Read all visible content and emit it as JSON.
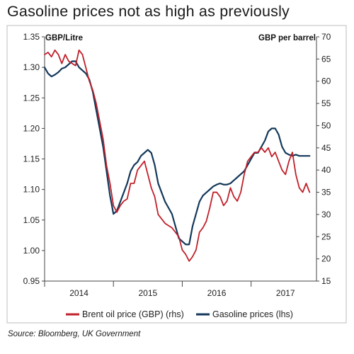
{
  "title": "Gasoline prices not as high as previously",
  "source": "Source: Bloomberg, UK Government",
  "colors": {
    "brent": "#c0202a",
    "gasoline": "#13385a",
    "frame": "#bcbcbc",
    "axis": "#444444"
  },
  "chart_data": {
    "type": "line",
    "title": "Gasoline prices not as high as previously",
    "left_axis": {
      "label": "GBP/Litre",
      "range": [
        0.95,
        1.35
      ],
      "ticks": [
        0.95,
        1.0,
        1.05,
        1.1,
        1.15,
        1.2,
        1.25,
        1.3,
        1.35
      ],
      "tick_labels": [
        "0.95",
        "1.00",
        "1.05",
        "1.10",
        "1.15",
        "1.20",
        "1.25",
        "1.30",
        "1.35"
      ]
    },
    "right_axis": {
      "label": "GBP per barrel",
      "range": [
        15,
        70
      ],
      "ticks": [
        15,
        20,
        25,
        30,
        35,
        40,
        45,
        50,
        55,
        60,
        65,
        70
      ],
      "tick_labels": [
        "15",
        "20",
        "25",
        "30",
        "35",
        "40",
        "45",
        "50",
        "55",
        "60",
        "65",
        "70"
      ]
    },
    "x_axis": {
      "range": [
        2013.5,
        2017.45
      ],
      "year_boundaries": [
        2013.5,
        2014.5,
        2015.5,
        2016.5
      ],
      "tick_labels": [
        "2014",
        "2015",
        "2016",
        "2017"
      ],
      "tick_label_positions": [
        2014.0,
        2015.0,
        2016.0,
        2017.0
      ]
    },
    "grid": false,
    "legend_position": "bottom",
    "series": [
      {
        "name": "Brent oil price (GBP) (rhs)",
        "axis": "right",
        "color": "#c0202a",
        "x": [
          2013.5,
          2013.55,
          2013.6,
          2013.65,
          2013.7,
          2013.75,
          2013.8,
          2013.85,
          2013.9,
          2013.95,
          2014.0,
          2014.05,
          2014.1,
          2014.15,
          2014.2,
          2014.25,
          2014.3,
          2014.35,
          2014.4,
          2014.45,
          2014.5,
          2014.55,
          2014.6,
          2014.65,
          2014.7,
          2014.75,
          2014.8,
          2014.85,
          2014.9,
          2014.95,
          2015.0,
          2015.05,
          2015.1,
          2015.15,
          2015.2,
          2015.25,
          2015.3,
          2015.35,
          2015.4,
          2015.45,
          2015.5,
          2015.55,
          2015.6,
          2015.65,
          2015.7,
          2015.75,
          2015.8,
          2015.85,
          2015.9,
          2015.95,
          2016.0,
          2016.05,
          2016.1,
          2016.15,
          2016.2,
          2016.25,
          2016.3,
          2016.35,
          2016.4,
          2016.45,
          2016.5,
          2016.55,
          2016.6,
          2016.65,
          2016.7,
          2016.75,
          2016.8,
          2016.85,
          2016.9,
          2016.95,
          2017.0,
          2017.05,
          2017.1,
          2017.15,
          2017.2,
          2017.25,
          2017.3,
          2017.35
        ],
        "values": [
          66,
          66.5,
          65.5,
          67,
          66,
          64,
          66,
          64.5,
          64,
          63.5,
          67,
          66,
          63,
          60,
          58,
          55,
          51,
          47,
          41,
          37,
          32,
          30.5,
          32,
          33,
          33.5,
          37,
          37,
          40,
          41,
          42,
          39,
          36,
          34,
          30,
          29,
          28,
          27.5,
          27,
          26,
          25,
          22,
          21,
          19.5,
          20.5,
          22,
          26,
          27,
          28.5,
          31.5,
          35,
          35,
          34,
          32,
          33,
          36,
          34,
          33,
          35,
          39,
          42,
          43,
          44,
          44,
          45,
          44,
          45,
          43,
          44,
          42,
          40,
          39,
          42,
          44,
          39,
          36,
          35,
          37,
          35
        ]
      },
      {
        "name": "Gasoline prices (lhs)",
        "axis": "left",
        "color": "#13385a",
        "x": [
          2013.5,
          2013.55,
          2013.6,
          2013.65,
          2013.7,
          2013.75,
          2013.8,
          2013.85,
          2013.9,
          2013.95,
          2014.0,
          2014.05,
          2014.1,
          2014.15,
          2014.2,
          2014.25,
          2014.3,
          2014.35,
          2014.4,
          2014.45,
          2014.5,
          2014.55,
          2014.6,
          2014.65,
          2014.7,
          2014.75,
          2014.8,
          2014.85,
          2014.9,
          2014.95,
          2015.0,
          2015.05,
          2015.1,
          2015.15,
          2015.2,
          2015.25,
          2015.3,
          2015.35,
          2015.4,
          2015.45,
          2015.5,
          2015.55,
          2015.6,
          2015.65,
          2015.7,
          2015.75,
          2015.8,
          2015.85,
          2015.9,
          2015.95,
          2016.0,
          2016.05,
          2016.1,
          2016.15,
          2016.2,
          2016.25,
          2016.3,
          2016.35,
          2016.4,
          2016.45,
          2016.5,
          2016.55,
          2016.6,
          2016.65,
          2016.7,
          2016.75,
          2016.8,
          2016.85,
          2016.9,
          2016.95,
          2017.0,
          2017.05,
          2017.1,
          2017.15,
          2017.2,
          2017.25,
          2017.3,
          2017.35
        ],
        "values": [
          1.3,
          1.29,
          1.285,
          1.288,
          1.292,
          1.298,
          1.3,
          1.305,
          1.31,
          1.31,
          1.3,
          1.295,
          1.29,
          1.28,
          1.26,
          1.23,
          1.2,
          1.17,
          1.13,
          1.09,
          1.06,
          1.065,
          1.08,
          1.095,
          1.11,
          1.13,
          1.14,
          1.145,
          1.155,
          1.16,
          1.165,
          1.16,
          1.14,
          1.11,
          1.095,
          1.08,
          1.07,
          1.06,
          1.04,
          1.02,
          1.015,
          1.01,
          1.01,
          1.04,
          1.06,
          1.08,
          1.09,
          1.095,
          1.1,
          1.105,
          1.108,
          1.11,
          1.108,
          1.108,
          1.11,
          1.115,
          1.12,
          1.125,
          1.13,
          1.14,
          1.15,
          1.16,
          1.16,
          1.17,
          1.18,
          1.195,
          1.2,
          1.2,
          1.19,
          1.17,
          1.16,
          1.157,
          1.155,
          1.157,
          1.155,
          1.155,
          1.155,
          1.155
        ]
      }
    ]
  }
}
